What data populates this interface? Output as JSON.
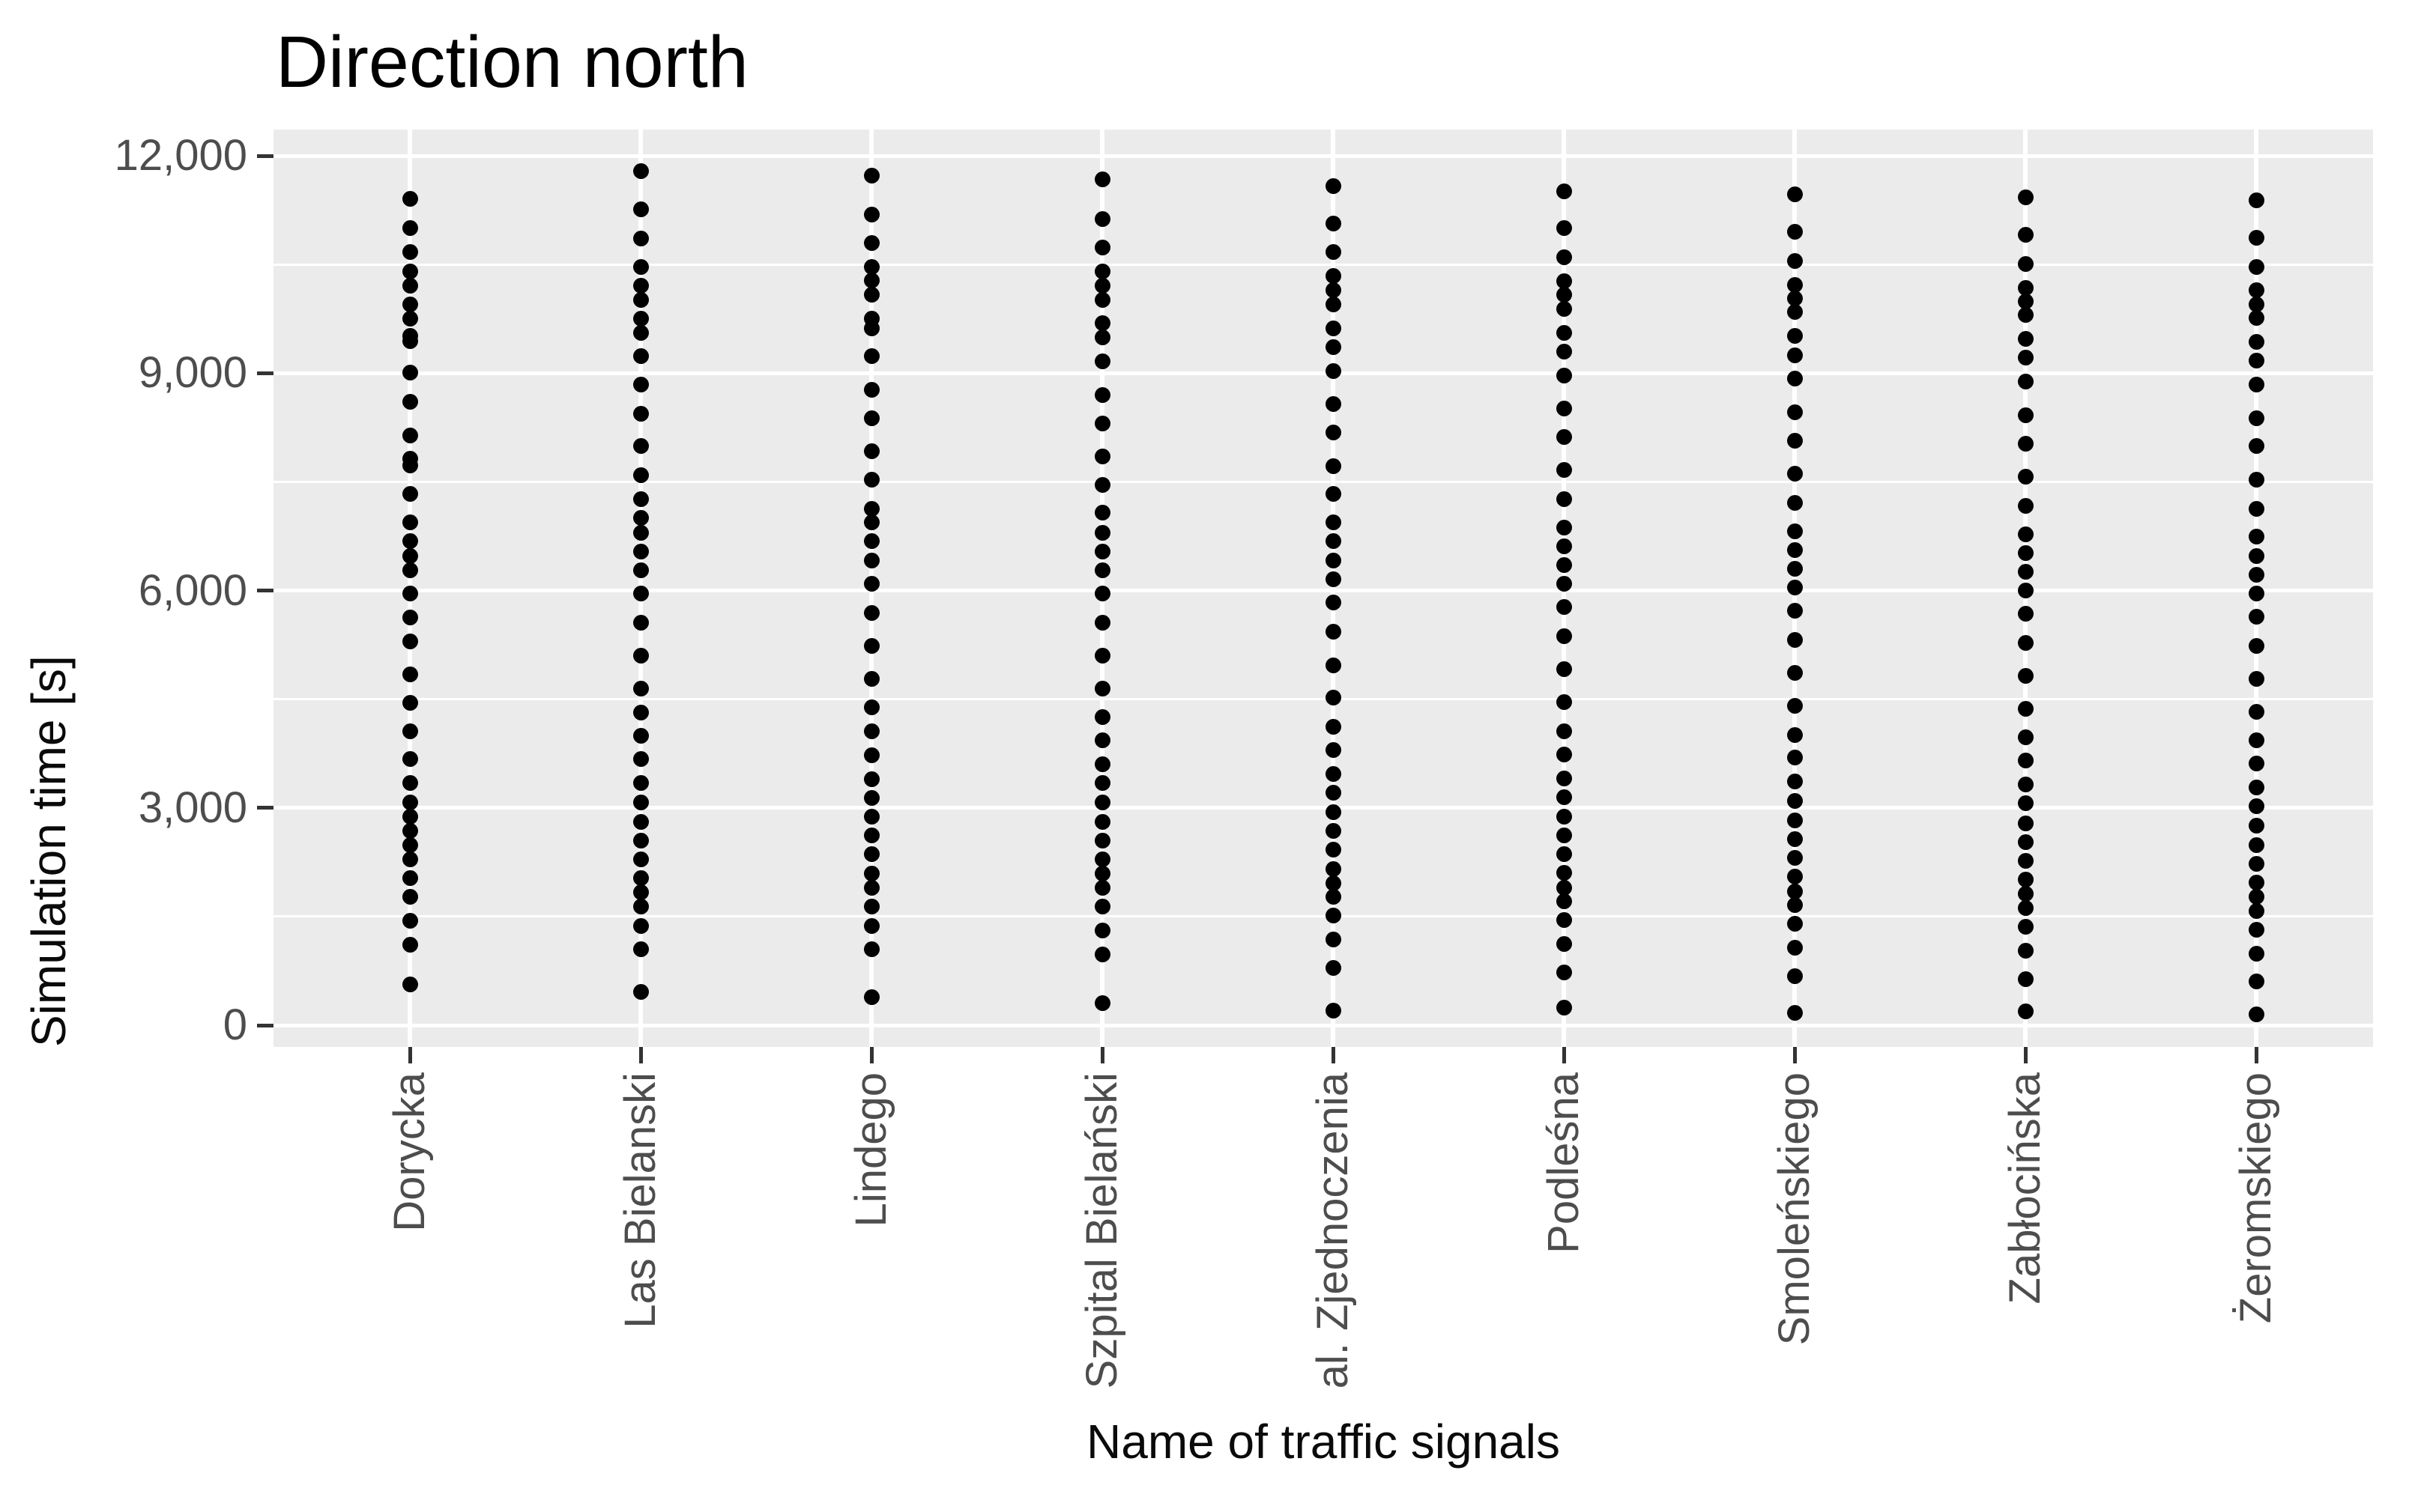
{
  "title": "Direction north",
  "colors": {
    "background": "#FFFFFF",
    "panel_background": "#EBEBEB",
    "gridline": "#FFFFFF",
    "point": "#000000",
    "tick_mark": "#333333",
    "tick_label": "#4D4D4D",
    "axis_title": "#0A0A0A",
    "title": "#000000"
  },
  "chart_data": {
    "type": "scatter",
    "title": "Direction north",
    "xlabel": "Name of traffic signals",
    "ylabel": "Simulation time [s]",
    "ylim": [
      0,
      12000
    ],
    "grid": "on",
    "legend_position": "none",
    "y_tick_values": [
      0,
      3000,
      6000,
      9000,
      12000
    ],
    "y_tick_labels": [
      "0",
      "3,000",
      "6,000",
      "9,000",
      "12,000"
    ],
    "y_minor_gridlines": [
      1500,
      4500,
      7500,
      10500
    ],
    "categories": [
      "Dorycka",
      "Las Bielanski",
      "Lindego",
      "Szpital Bielański",
      "al. Zjednoczenia",
      "Podleśna",
      "Smoleńskiego",
      "Zabłocińska",
      "Żeromskiego"
    ],
    "series": [
      {
        "name": "Dorycka",
        "values": [
          11410,
          11000,
          10670,
          10400,
          10210,
          9950,
          9750,
          9510,
          9440,
          9010,
          8600,
          8140,
          7820,
          7730,
          7330,
          6940,
          6680,
          6480,
          6280,
          5960,
          5630,
          5300,
          4840,
          4450,
          4060,
          3670,
          3340,
          3080,
          2880,
          2680,
          2490,
          2290,
          2030,
          1770,
          1440,
          1110,
          560
        ]
      },
      {
        "name": "Las Bielanski",
        "values": [
          11790,
          11260,
          10860,
          10470,
          10210,
          10010,
          9750,
          9560,
          9230,
          8840,
          8440,
          7990,
          7590,
          7260,
          7000,
          6800,
          6540,
          6280,
          5960,
          5560,
          5100,
          4650,
          4320,
          3990,
          3670,
          3340,
          3080,
          2810,
          2550,
          2290,
          2030,
          1830,
          1640,
          1370,
          1050,
          460
        ]
      },
      {
        "name": "Lindego",
        "values": [
          11730,
          11190,
          10800,
          10470,
          10280,
          10080,
          9750,
          9620,
          9230,
          8770,
          8380,
          7920,
          7530,
          7130,
          6940,
          6680,
          6410,
          6090,
          5690,
          5240,
          4780,
          4390,
          4060,
          3730,
          3400,
          3140,
          2880,
          2620,
          2360,
          2090,
          1900,
          1640,
          1370,
          1050,
          390
        ]
      },
      {
        "name": "Szpital Bielański",
        "values": [
          11670,
          11130,
          10730,
          10400,
          10210,
          10010,
          9690,
          9490,
          9160,
          8700,
          8310,
          7850,
          7460,
          7070,
          6800,
          6540,
          6280,
          5960,
          5560,
          5100,
          4650,
          4250,
          3930,
          3600,
          3340,
          3080,
          2810,
          2550,
          2290,
          2090,
          1900,
          1640,
          1310,
          980,
          310
        ]
      },
      {
        "name": "al. Zjednoczenia",
        "values": [
          11580,
          11060,
          10670,
          10340,
          10140,
          9950,
          9620,
          9360,
          9030,
          8570,
          8180,
          7720,
          7330,
          6940,
          6680,
          6410,
          6150,
          5830,
          5430,
          4970,
          4520,
          4120,
          3800,
          3470,
          3210,
          2940,
          2680,
          2420,
          2160,
          1960,
          1770,
          1510,
          1180,
          790,
          200
        ]
      },
      {
        "name": "Podleśna",
        "values": [
          11510,
          11000,
          10600,
          10270,
          10080,
          9890,
          9560,
          9300,
          8970,
          8510,
          8120,
          7660,
          7260,
          6870,
          6610,
          6350,
          6090,
          5770,
          5370,
          4910,
          4460,
          4060,
          3740,
          3410,
          3150,
          2880,
          2620,
          2360,
          2100,
          1900,
          1710,
          1450,
          1120,
          730,
          240
        ]
      },
      {
        "name": "Smoleńskiego",
        "values": [
          11470,
          10950,
          10550,
          10220,
          10030,
          9840,
          9510,
          9250,
          8920,
          8460,
          8070,
          7610,
          7210,
          6820,
          6560,
          6300,
          6040,
          5720,
          5320,
          4860,
          4410,
          4010,
          3690,
          3360,
          3100,
          2830,
          2570,
          2310,
          2050,
          1850,
          1660,
          1400,
          1070,
          680,
          170
        ]
      },
      {
        "name": "Zabłocińska",
        "values": [
          11430,
          10910,
          10510,
          10180,
          9990,
          9800,
          9470,
          9210,
          8880,
          8420,
          8030,
          7570,
          7170,
          6780,
          6520,
          6260,
          6000,
          5680,
          5280,
          4820,
          4370,
          3970,
          3650,
          3320,
          3060,
          2790,
          2530,
          2270,
          2010,
          1810,
          1620,
          1360,
          1030,
          640,
          190
        ]
      },
      {
        "name": "Żeromskiego",
        "values": [
          11390,
          10870,
          10470,
          10140,
          9950,
          9760,
          9430,
          9170,
          8840,
          8380,
          7990,
          7530,
          7130,
          6740,
          6480,
          6220,
          5960,
          5640,
          5240,
          4780,
          4330,
          3930,
          3610,
          3280,
          3020,
          2750,
          2490,
          2230,
          1970,
          1770,
          1580,
          1320,
          990,
          600,
          150
        ]
      }
    ]
  }
}
